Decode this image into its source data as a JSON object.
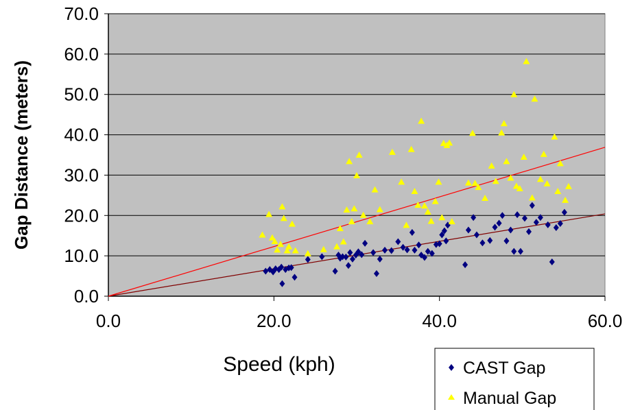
{
  "chart_data": {
    "type": "scatter",
    "xlabel": "Speed (kph)",
    "ylabel": "Gap Distance (meters)",
    "xlim": [
      0,
      60
    ],
    "ylim": [
      0,
      70
    ],
    "x_ticks": [
      "0.0",
      "20.0",
      "40.0",
      "60.0"
    ],
    "y_ticks": [
      "0.0",
      "10.0",
      "20.0",
      "30.0",
      "40.0",
      "50.0",
      "60.0",
      "70.0"
    ],
    "grid": "horizontal",
    "legend_position": "bottom-right",
    "plot_background": "#c0c0c0",
    "series": [
      {
        "name": "CAST Gap",
        "marker": "diamond",
        "color": "#000080",
        "points": [
          [
            19.0,
            6.2
          ],
          [
            19.5,
            6.6
          ],
          [
            19.9,
            6.0
          ],
          [
            20.2,
            6.8
          ],
          [
            20.6,
            6.6
          ],
          [
            20.9,
            7.2
          ],
          [
            21.0,
            3.1
          ],
          [
            21.4,
            6.6
          ],
          [
            21.8,
            7.0
          ],
          [
            22.1,
            7.1
          ],
          [
            22.5,
            4.7
          ],
          [
            24.1,
            9.1
          ],
          [
            25.8,
            9.8
          ],
          [
            27.4,
            6.2
          ],
          [
            27.8,
            10.2
          ],
          [
            28.0,
            9.4
          ],
          [
            28.3,
            9.8
          ],
          [
            28.7,
            9.7
          ],
          [
            29.0,
            7.6
          ],
          [
            29.2,
            10.8
          ],
          [
            29.5,
            9.2
          ],
          [
            29.9,
            10.2
          ],
          [
            30.2,
            11.0
          ],
          [
            30.6,
            10.3
          ],
          [
            31.0,
            13.1
          ],
          [
            32.0,
            10.8
          ],
          [
            32.4,
            5.6
          ],
          [
            32.8,
            9.2
          ],
          [
            33.4,
            11.4
          ],
          [
            34.2,
            11.3
          ],
          [
            35.0,
            13.5
          ],
          [
            35.6,
            12.1
          ],
          [
            36.1,
            11.5
          ],
          [
            36.7,
            15.8
          ],
          [
            37.0,
            11.4
          ],
          [
            37.5,
            12.7
          ],
          [
            37.8,
            10.2
          ],
          [
            38.2,
            9.6
          ],
          [
            38.6,
            11.1
          ],
          [
            39.1,
            10.6
          ],
          [
            39.6,
            12.8
          ],
          [
            40.0,
            13.0
          ],
          [
            40.3,
            15.2
          ],
          [
            40.6,
            16.2
          ],
          [
            40.8,
            13.7
          ],
          [
            41.0,
            17.6
          ],
          [
            43.1,
            7.8
          ],
          [
            43.5,
            16.4
          ],
          [
            44.1,
            19.5
          ],
          [
            44.5,
            15.2
          ],
          [
            45.2,
            13.2
          ],
          [
            46.1,
            13.8
          ],
          [
            46.7,
            17.1
          ],
          [
            47.2,
            18.1
          ],
          [
            47.6,
            20.0
          ],
          [
            48.1,
            13.7
          ],
          [
            48.6,
            16.4
          ],
          [
            49.0,
            11.1
          ],
          [
            49.4,
            20.2
          ],
          [
            49.8,
            11.1
          ],
          [
            50.3,
            19.3
          ],
          [
            50.8,
            16.0
          ],
          [
            51.2,
            22.5
          ],
          [
            51.7,
            18.3
          ],
          [
            52.2,
            19.5
          ],
          [
            53.1,
            17.7
          ],
          [
            53.6,
            8.5
          ],
          [
            54.1,
            17.0
          ],
          [
            54.6,
            18.0
          ],
          [
            55.1,
            20.8
          ]
        ]
      },
      {
        "name": "Manual Gap",
        "marker": "triangle",
        "color": "#ffff00",
        "points": [
          [
            18.6,
            15.2
          ],
          [
            19.4,
            20.3
          ],
          [
            19.8,
            14.5
          ],
          [
            20.1,
            13.6
          ],
          [
            20.4,
            11.5
          ],
          [
            20.8,
            12.9
          ],
          [
            21.0,
            22.2
          ],
          [
            21.2,
            19.3
          ],
          [
            21.6,
            11.3
          ],
          [
            21.8,
            12.3
          ],
          [
            22.2,
            17.9
          ],
          [
            22.6,
            11.3
          ],
          [
            24.1,
            10.6
          ],
          [
            26.0,
            11.6
          ],
          [
            27.6,
            12.3
          ],
          [
            28.0,
            16.8
          ],
          [
            28.4,
            13.5
          ],
          [
            28.8,
            21.4
          ],
          [
            29.1,
            33.4
          ],
          [
            29.4,
            18.5
          ],
          [
            29.7,
            21.7
          ],
          [
            30.0,
            29.9
          ],
          [
            30.3,
            35.0
          ],
          [
            30.8,
            20.1
          ],
          [
            31.6,
            18.5
          ],
          [
            32.2,
            26.4
          ],
          [
            32.8,
            21.5
          ],
          [
            34.3,
            35.7
          ],
          [
            35.4,
            28.3
          ],
          [
            36.0,
            17.6
          ],
          [
            36.6,
            36.4
          ],
          [
            37.0,
            26.0
          ],
          [
            37.4,
            22.6
          ],
          [
            37.8,
            43.4
          ],
          [
            38.2,
            22.4
          ],
          [
            38.6,
            20.9
          ],
          [
            39.0,
            18.6
          ],
          [
            39.5,
            23.5
          ],
          [
            39.9,
            28.3
          ],
          [
            40.3,
            19.5
          ],
          [
            40.5,
            37.9
          ],
          [
            40.9,
            37.4
          ],
          [
            41.2,
            38.0
          ],
          [
            41.5,
            18.5
          ],
          [
            43.5,
            28.1
          ],
          [
            44.0,
            40.4
          ],
          [
            44.3,
            28.0
          ],
          [
            44.7,
            27.0
          ],
          [
            45.5,
            24.3
          ],
          [
            46.3,
            32.3
          ],
          [
            46.8,
            28.5
          ],
          [
            47.5,
            40.5
          ],
          [
            47.8,
            42.8
          ],
          [
            48.1,
            33.4
          ],
          [
            48.6,
            29.3
          ],
          [
            49.0,
            50.0
          ],
          [
            49.3,
            27.3
          ],
          [
            49.7,
            26.7
          ],
          [
            50.2,
            34.5
          ],
          [
            50.5,
            58.2
          ],
          [
            51.2,
            24.4
          ],
          [
            51.5,
            48.9
          ],
          [
            52.2,
            29.0
          ],
          [
            52.6,
            35.2
          ],
          [
            53.0,
            27.9
          ],
          [
            53.9,
            39.5
          ],
          [
            54.3,
            26.0
          ],
          [
            54.6,
            32.9
          ],
          [
            55.2,
            23.8
          ],
          [
            55.6,
            27.2
          ]
        ]
      }
    ],
    "trendlines": [
      {
        "series": "CAST Gap",
        "slope": 0.34,
        "intercept": 0,
        "color": "#800000"
      },
      {
        "series": "Manual Gap",
        "slope": 0.615,
        "intercept": 0,
        "color": "#ff0000"
      }
    ]
  }
}
